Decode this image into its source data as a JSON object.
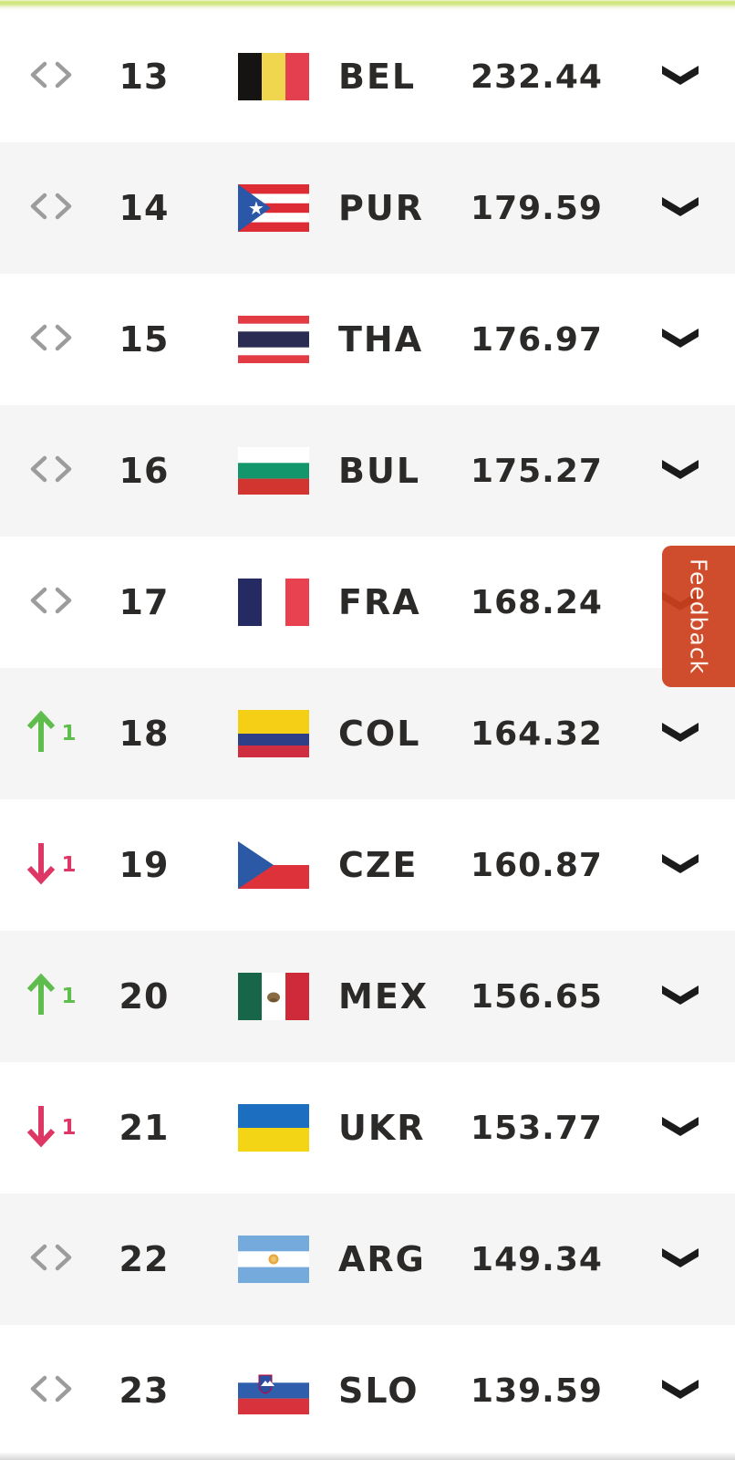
{
  "page": {
    "feedback_label": "Feedback"
  },
  "colors": {
    "row_alt_bg": "#f5f5f5",
    "text_dark": "#2b2a28",
    "rank_same_gray": "#9c9c9c",
    "rank_up_green": "#5fbd4e",
    "rank_down_pink": "#dc3765",
    "expand_chevron_black": "#1b1b1b",
    "feedback_orange": "#cb3f1c",
    "top_highlight_lime": "#cfe57d"
  },
  "icons": {
    "rank_same": "rank-same-icon",
    "rank_up": "rank-up-arrow-icon",
    "rank_down": "rank-down-arrow-icon",
    "expand": "chevron-down-icon"
  },
  "table": {
    "rows": [
      {
        "rank": "13",
        "code": "BEL",
        "points": "232.44",
        "change_dir": "none",
        "change_value": ""
      },
      {
        "rank": "14",
        "code": "PUR",
        "points": "179.59",
        "change_dir": "none",
        "change_value": ""
      },
      {
        "rank": "15",
        "code": "THA",
        "points": "176.97",
        "change_dir": "none",
        "change_value": ""
      },
      {
        "rank": "16",
        "code": "BUL",
        "points": "175.27",
        "change_dir": "none",
        "change_value": ""
      },
      {
        "rank": "17",
        "code": "FRA",
        "points": "168.24",
        "change_dir": "none",
        "change_value": ""
      },
      {
        "rank": "18",
        "code": "COL",
        "points": "164.32",
        "change_dir": "up",
        "change_value": "1"
      },
      {
        "rank": "19",
        "code": "CZE",
        "points": "160.87",
        "change_dir": "down",
        "change_value": "1"
      },
      {
        "rank": "20",
        "code": "MEX",
        "points": "156.65",
        "change_dir": "up",
        "change_value": "1"
      },
      {
        "rank": "21",
        "code": "UKR",
        "points": "153.77",
        "change_dir": "down",
        "change_value": "1"
      },
      {
        "rank": "22",
        "code": "ARG",
        "points": "149.34",
        "change_dir": "none",
        "change_value": ""
      },
      {
        "rank": "23",
        "code": "SLO",
        "points": "139.59",
        "change_dir": "none",
        "change_value": ""
      }
    ]
  }
}
